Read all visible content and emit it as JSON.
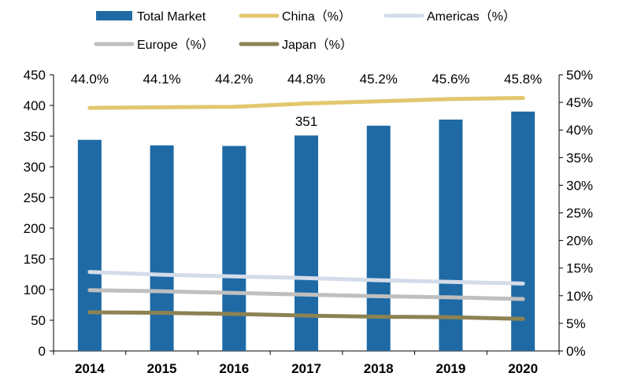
{
  "chart_data": {
    "type": "bar+line",
    "categories": [
      "2014",
      "2015",
      "2016",
      "2017",
      "2018",
      "2019",
      "2020"
    ],
    "bars": {
      "name": "Total Market",
      "values": [
        344,
        335,
        334,
        351,
        367,
        377,
        390
      ],
      "color": "#1f6aa5"
    },
    "lines": [
      {
        "name": "China（%）",
        "values": [
          44.0,
          44.1,
          44.2,
          44.8,
          45.2,
          45.6,
          45.8
        ],
        "color": "#e3c76e"
      },
      {
        "name": "Americas（%）",
        "values": [
          14.3,
          13.8,
          13.5,
          13.2,
          12.8,
          12.5,
          12.2
        ],
        "color": "#d3dce9"
      },
      {
        "name": "Europe（%）",
        "values": [
          11.0,
          10.8,
          10.5,
          10.2,
          9.9,
          9.7,
          9.4
        ],
        "color": "#bfbfbf"
      },
      {
        "name": "Japan（%）",
        "values": [
          7.0,
          6.9,
          6.7,
          6.4,
          6.2,
          6.1,
          5.8
        ],
        "color": "#8c8253"
      }
    ],
    "china_labels": [
      "44.0%",
      "44.1%",
      "44.2%",
      "44.8%",
      "45.2%",
      "45.6%",
      "45.8%"
    ],
    "bar_annotation": {
      "category": "2017",
      "text": "351"
    },
    "y_left": {
      "min": 0,
      "max": 450,
      "ticks": [
        "0",
        "50",
        "100",
        "150",
        "200",
        "250",
        "300",
        "350",
        "400",
        "450"
      ]
    },
    "y_right": {
      "min": 0,
      "max": 50,
      "ticks": [
        "0%",
        "5%",
        "10%",
        "15%",
        "20%",
        "25%",
        "30%",
        "35%",
        "40%",
        "45%",
        "50%"
      ]
    },
    "legend": {
      "placement": "top",
      "items": [
        "Total Market",
        "China（%）",
        "Americas（%）",
        "Europe（%）",
        "Japan（%）"
      ]
    },
    "grid": false
  }
}
